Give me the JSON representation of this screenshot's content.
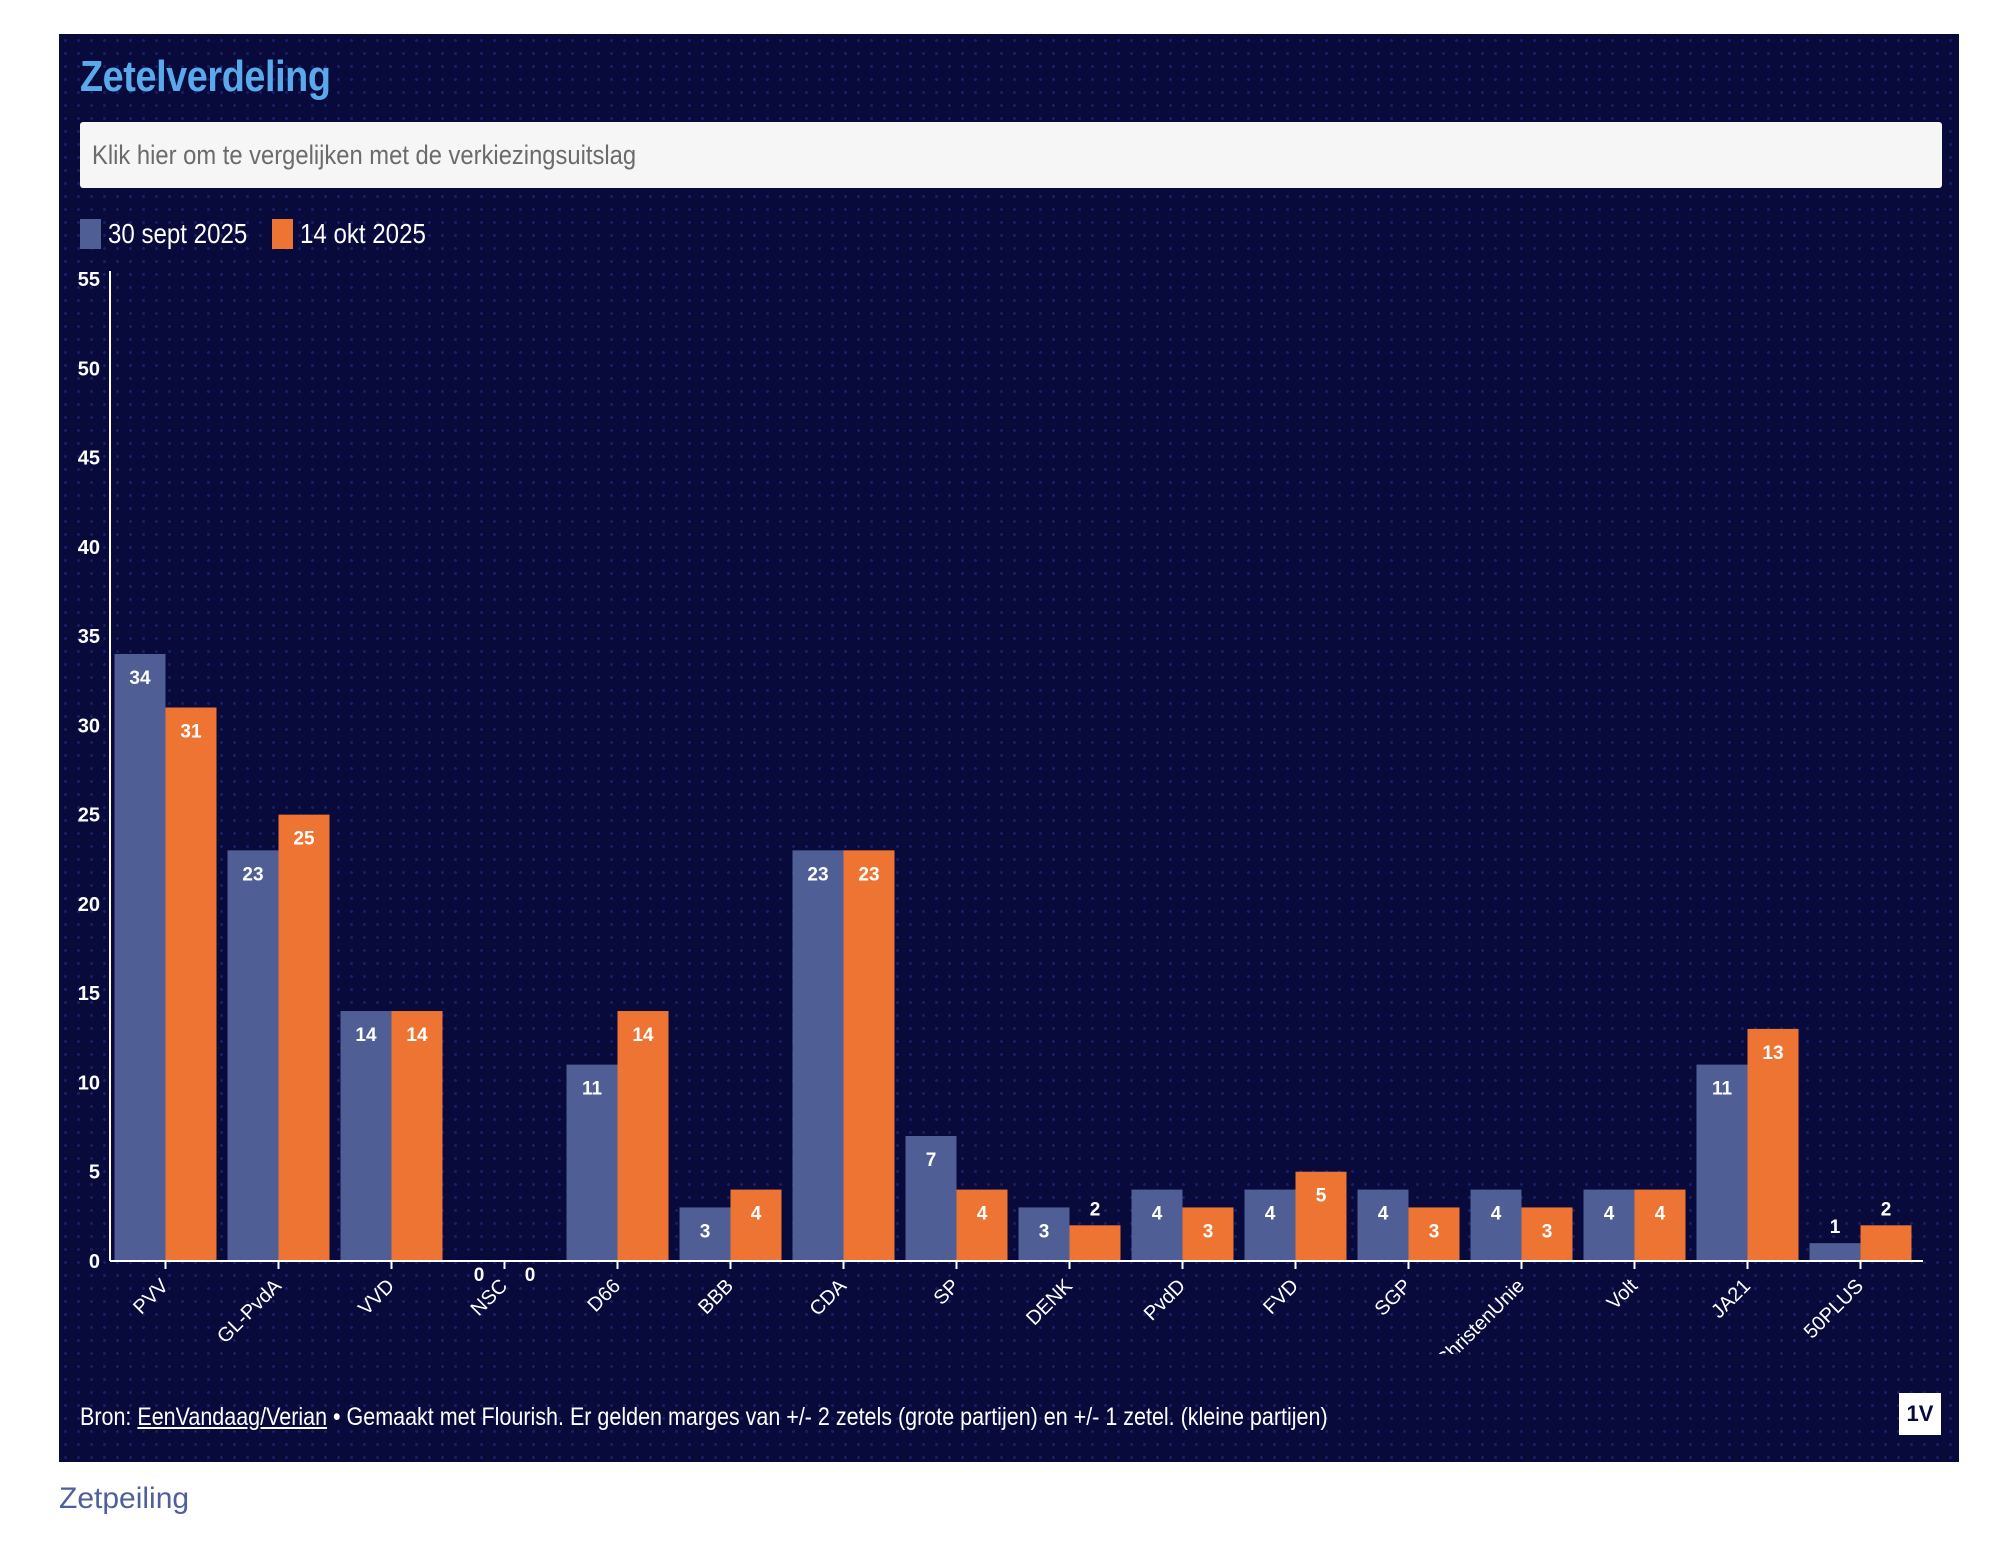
{
  "header": {
    "title": "Zetelverdeling",
    "compare_button": "Klik hier om te vergelijken met de verkiezingsuitslag"
  },
  "colors": {
    "background": "#070a3b",
    "series_1": "#4f5f95",
    "series_2": "#ee7433",
    "title": "#5aa9ea"
  },
  "chart_data": {
    "type": "bar",
    "title": "Zetelverdeling",
    "xlabel": "",
    "ylabel": "",
    "ylim": [
      0,
      55
    ],
    "yticks": [
      "0",
      "5",
      "10",
      "15",
      "20",
      "25",
      "30",
      "35",
      "40",
      "45",
      "50",
      "55"
    ],
    "grid": false,
    "legend_position": "top-left",
    "categories": [
      "PVV",
      "GL-PvdA",
      "VVD",
      "NSC",
      "D66",
      "BBB",
      "CDA",
      "SP",
      "DENK",
      "PvdD",
      "FVD",
      "SGP",
      "ChristenUnie",
      "Volt",
      "JA21",
      "50PLUS"
    ],
    "series": [
      {
        "name": "30 sept 2025",
        "color": "#4f5f95",
        "values": [
          34,
          23,
          14,
          0,
          11,
          3,
          23,
          7,
          3,
          4,
          4,
          4,
          4,
          4,
          11,
          1
        ]
      },
      {
        "name": "14 okt 2025",
        "color": "#ee7433",
        "values": [
          31,
          25,
          14,
          0,
          14,
          4,
          23,
          4,
          2,
          3,
          5,
          3,
          3,
          4,
          13,
          2
        ]
      }
    ]
  },
  "footer": {
    "source_prefix": "Bron: ",
    "source_link": "EenVandaag/Verian",
    "note": " • Gemaakt met Flourish. Er gelden marges van +/- 2 zetels (grote partijen) en +/- 1 zetel. (kleine partijen)",
    "logo_text": "1V"
  },
  "caption": "Zetpeiling"
}
